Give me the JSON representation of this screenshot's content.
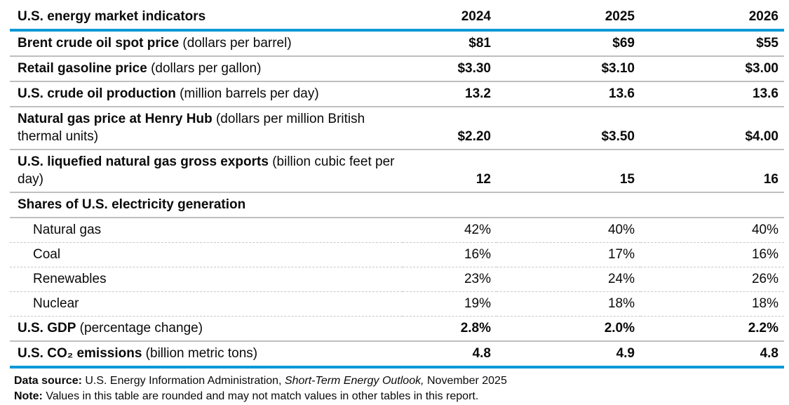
{
  "meta": {
    "accent_blue": "#0d98d6",
    "rule_gray": "#bfbfbf"
  },
  "table": {
    "title": "U.S. energy market indicators",
    "years": [
      "2024",
      "2025",
      "2026"
    ],
    "rows": [
      {
        "type": "main",
        "rule": "solid",
        "label": "Brent crude oil spot price",
        "unit": "(dollars per barrel)",
        "values": [
          "$81",
          "$69",
          "$55"
        ]
      },
      {
        "type": "main",
        "rule": "solid",
        "label": "Retail gasoline price",
        "unit": "(dollars per gallon)",
        "values": [
          "$3.30",
          "$3.10",
          "$3.00"
        ]
      },
      {
        "type": "main",
        "rule": "solid",
        "label": "U.S. crude oil production",
        "unit": "(million barrels per day)",
        "values": [
          "13.2",
          "13.6",
          "13.6"
        ]
      },
      {
        "type": "main",
        "rule": "solid",
        "label": "Natural gas price at Henry Hub",
        "unit": "(dollars per million British thermal units)",
        "values": [
          "$2.20",
          "$3.50",
          "$4.00"
        ]
      },
      {
        "type": "main",
        "rule": "solid",
        "label": "U.S. liquefied natural gas gross exports",
        "unit": "(billion cubic feet per day)",
        "values": [
          "12",
          "15",
          "16"
        ]
      },
      {
        "type": "section",
        "rule": "solid",
        "label": "Shares of U.S. electricity generation",
        "unit": "",
        "values": [
          "",
          "",
          ""
        ]
      },
      {
        "type": "sub",
        "rule": "dashed",
        "label": "Natural gas",
        "unit": "",
        "values": [
          "42%",
          "40%",
          "40%"
        ]
      },
      {
        "type": "sub",
        "rule": "dashed",
        "label": "Coal",
        "unit": "",
        "values": [
          "16%",
          "17%",
          "16%"
        ]
      },
      {
        "type": "sub",
        "rule": "dashed",
        "label": "Renewables",
        "unit": "",
        "values": [
          "23%",
          "24%",
          "26%"
        ]
      },
      {
        "type": "sub",
        "rule": "dashed",
        "label": "Nuclear",
        "unit": "",
        "values": [
          "19%",
          "18%",
          "18%"
        ]
      },
      {
        "type": "main",
        "rule": "solid",
        "label": "U.S. GDP",
        "unit": "(percentage change)",
        "values": [
          "2.8%",
          "2.0%",
          "2.2%"
        ]
      },
      {
        "type": "main",
        "rule": "accent",
        "label": "U.S. CO₂ emissions",
        "unit": "(billion metric tons)",
        "values": [
          "4.8",
          "4.9",
          "4.8"
        ]
      }
    ]
  },
  "footer": {
    "data_source_label": "Data source:",
    "data_source_text": " U.S. Energy Information Administration, ",
    "data_source_italic": "Short-Term Energy Outlook,",
    "data_source_tail": " November 2025",
    "note_label": "Note:",
    "note_text": " Values in this table are rounded and may not match values in other tables in this report."
  }
}
